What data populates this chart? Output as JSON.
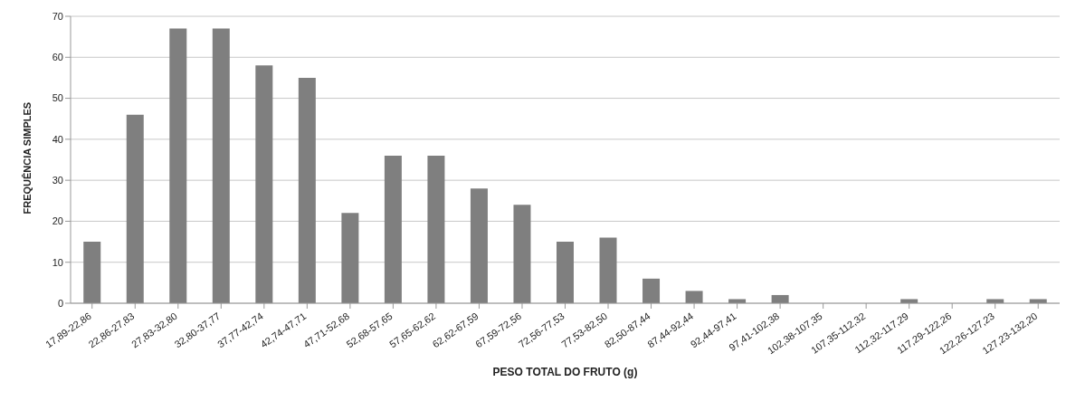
{
  "chart_data": {
    "type": "bar",
    "xlabel": "PESO TOTAL DO FRUTO (g)",
    "ylabel": "FREQUÊNCIA SIMPLES",
    "categories": [
      "17,89-22,86",
      "22,86-27,83",
      "27,83-32,80",
      "32,80-37,77",
      "37,77-42,74",
      "42,74-47,71",
      "47,71-52,68",
      "52,68-57,65",
      "57,65-62,62",
      "62,62-67,59",
      "67,59-72,56",
      "72,56-77,53",
      "77,53-82,50",
      "82,50-87,44",
      "87,44-92,44",
      "92,44-97,41",
      "97,41-102,38",
      "102,38-107,35",
      "107,35-112,32",
      "112,32-117,29",
      "117,29-122,26",
      "122,26-127,23",
      "127,23-132,20"
    ],
    "values": [
      15,
      46,
      67,
      67,
      58,
      55,
      22,
      36,
      36,
      28,
      24,
      15,
      16,
      6,
      3,
      1,
      2,
      0,
      0,
      1,
      0,
      1,
      1
    ],
    "color": "#7f7f7f",
    "ylim": [
      0,
      70
    ],
    "yticks": [
      0,
      10,
      20,
      30,
      40,
      50,
      60,
      70
    ],
    "grid": "y",
    "legend": false
  }
}
